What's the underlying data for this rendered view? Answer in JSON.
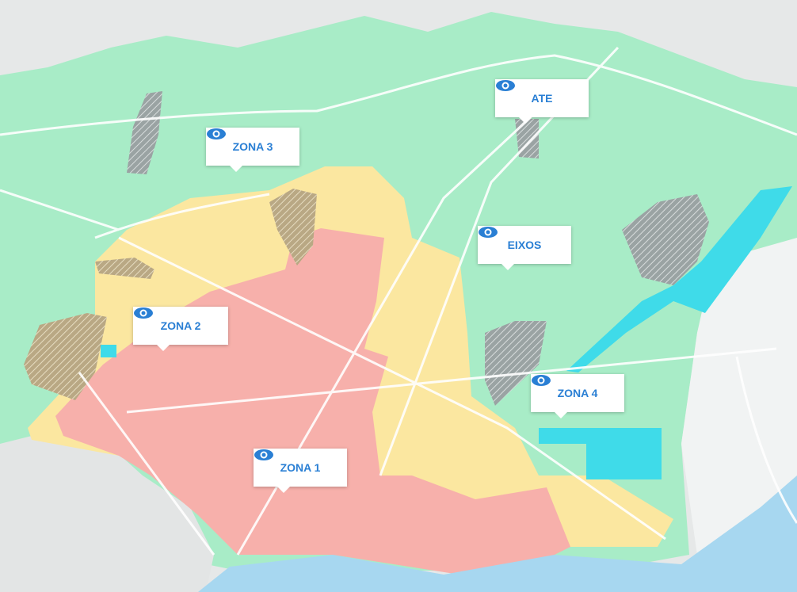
{
  "markers": [
    {
      "label": "ATE"
    },
    {
      "label": "ZONA 3"
    },
    {
      "label": "EIXOS"
    },
    {
      "label": "ZONA 2"
    },
    {
      "label": "ZONA 4"
    },
    {
      "label": "ZONA 1"
    }
  ]
}
